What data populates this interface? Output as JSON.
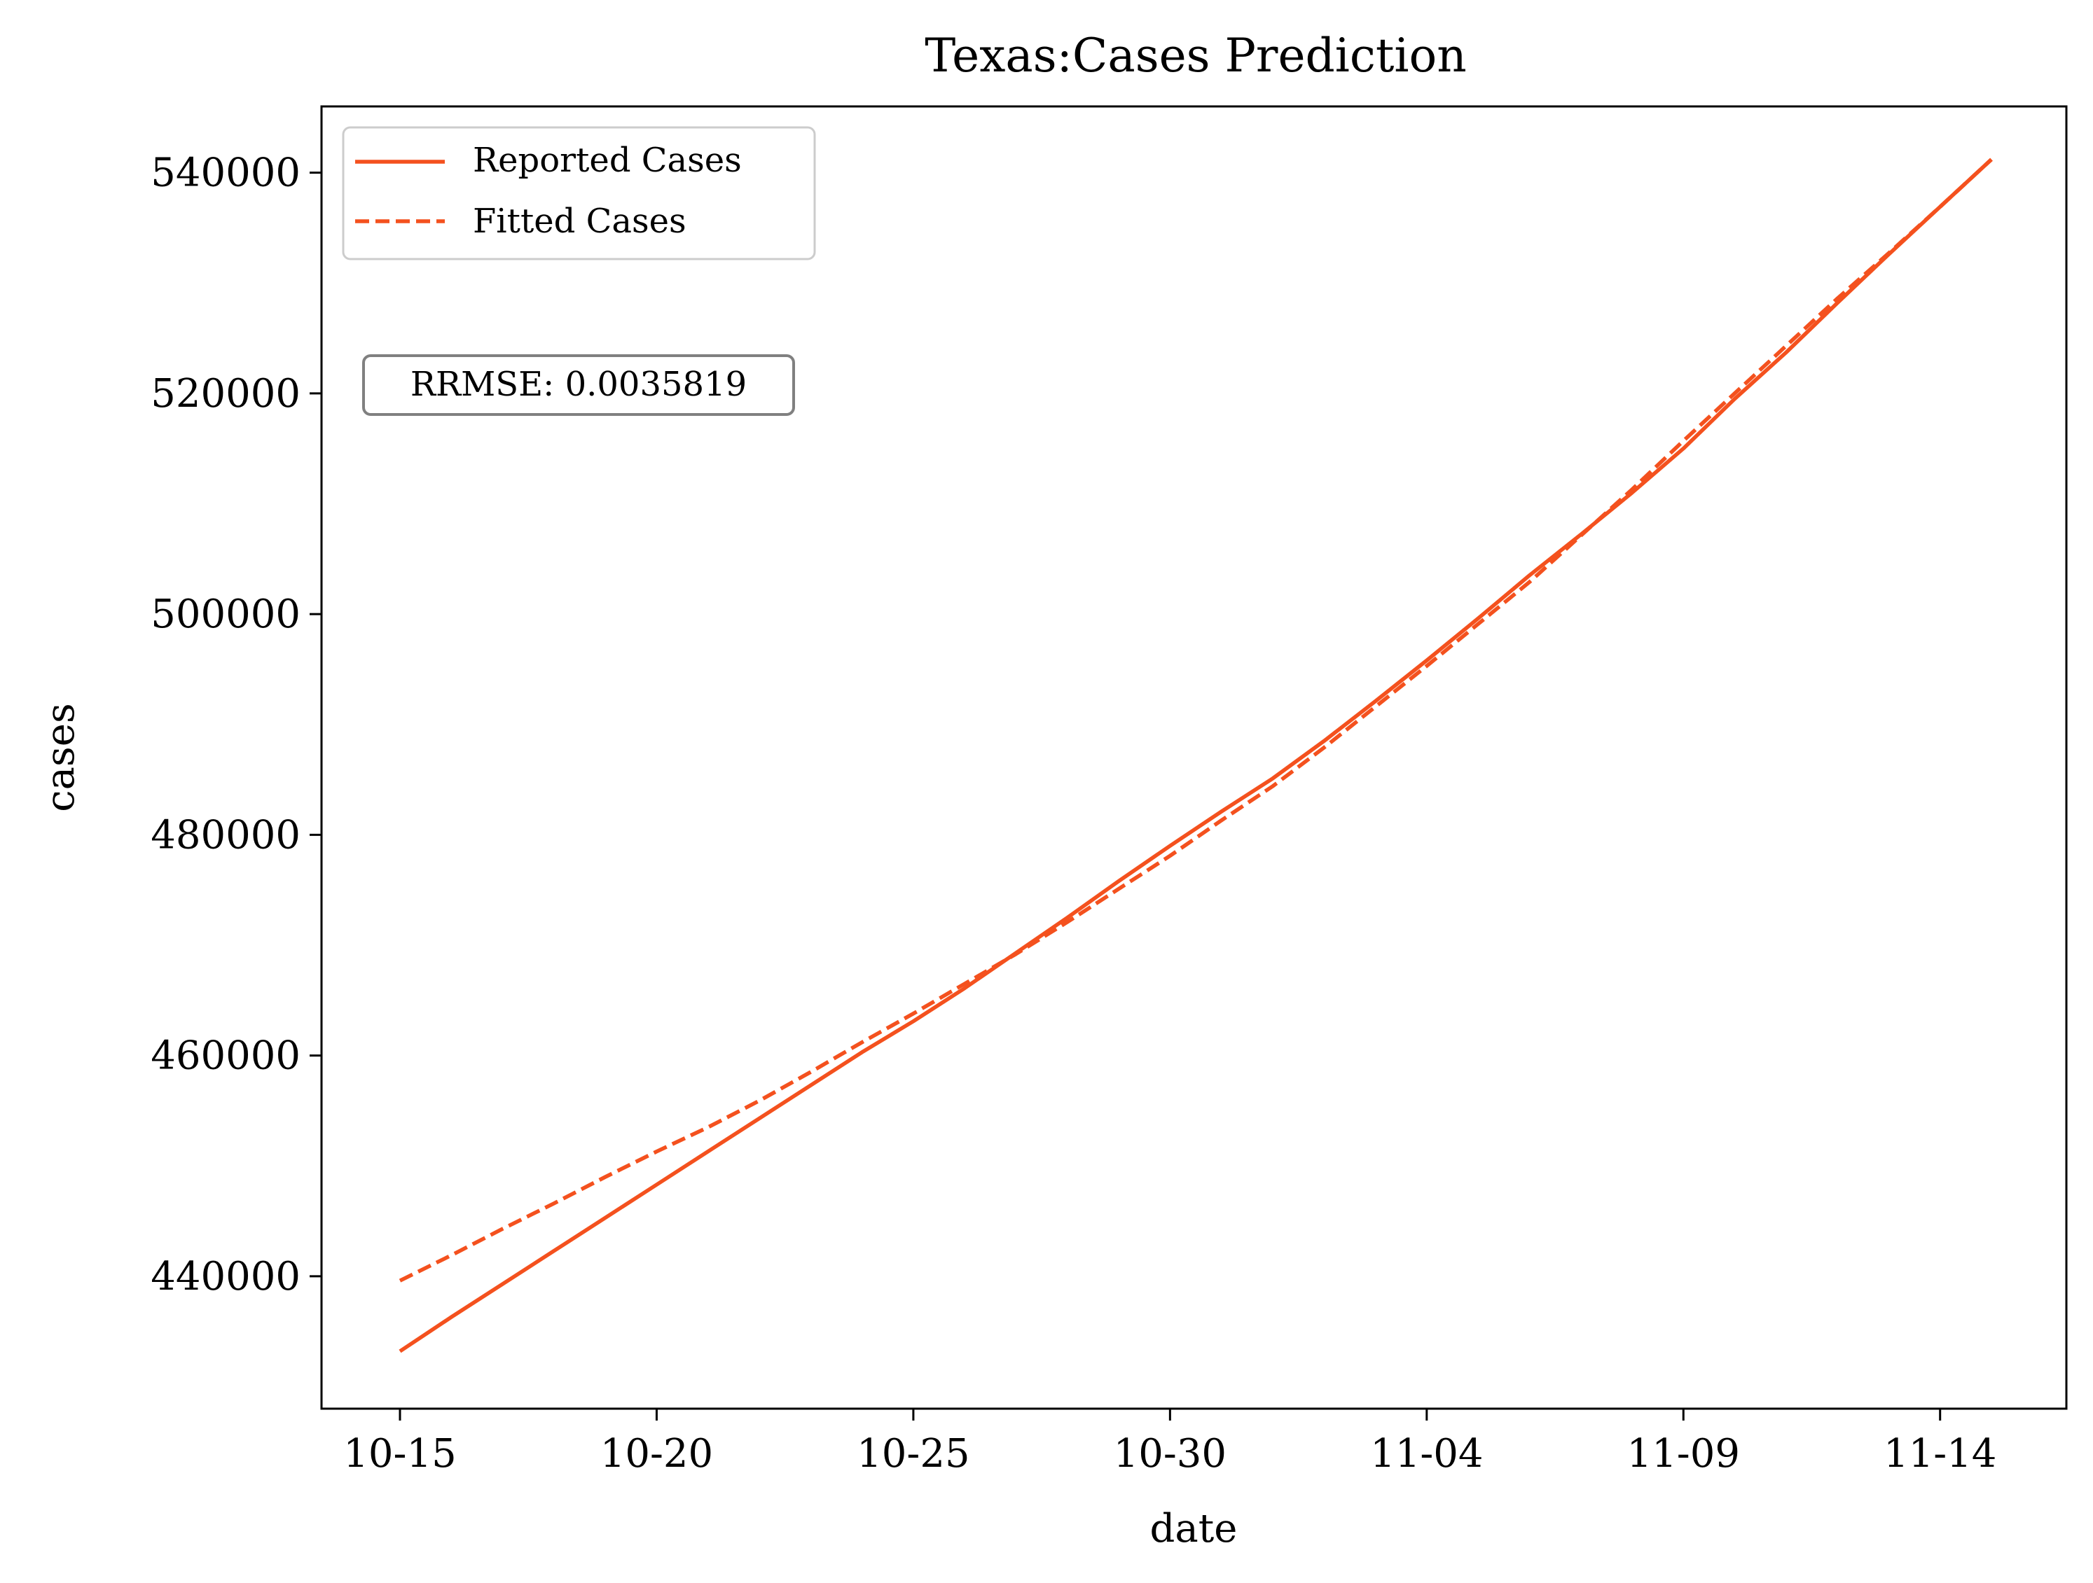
{
  "chart_data": {
    "type": "line",
    "title": "Texas:Cases Prediction",
    "xlabel": "date",
    "ylabel": "cases",
    "x_dates": [
      "10-15",
      "10-16",
      "10-17",
      "10-18",
      "10-19",
      "10-20",
      "10-21",
      "10-22",
      "10-23",
      "10-24",
      "10-25",
      "10-26",
      "10-27",
      "10-28",
      "10-29",
      "10-30",
      "10-31",
      "11-01",
      "11-02",
      "11-03",
      "11-04",
      "11-05",
      "11-06",
      "11-07",
      "11-08",
      "11-09",
      "11-10",
      "11-11",
      "11-12",
      "11-13",
      "11-14",
      "11-15"
    ],
    "x_ticks": [
      "10-15",
      "10-20",
      "10-25",
      "10-30",
      "11-04",
      "11-09",
      "11-14"
    ],
    "y_ticks": [
      440000,
      460000,
      480000,
      500000,
      520000,
      540000
    ],
    "ylim": [
      428000,
      546000
    ],
    "grid": false,
    "legend_position": "upper-left",
    "series": [
      {
        "name": "Reported Cases",
        "style": "solid",
        "color": "#f4511e",
        "values": [
          433200,
          436300,
          439300,
          442300,
          445300,
          448300,
          451300,
          454300,
          457300,
          460300,
          463100,
          466100,
          469300,
          472500,
          475800,
          479000,
          482100,
          485100,
          488500,
          492100,
          495800,
          499600,
          503500,
          507200,
          511000,
          515000,
          519500,
          523700,
          528200,
          532600,
          536900,
          541200
        ]
      },
      {
        "name": "Fitted Cases",
        "style": "dashed",
        "color": "#f4511e",
        "values": [
          439600,
          441900,
          444300,
          446600,
          449000,
          451300,
          453500,
          455900,
          458500,
          461200,
          463800,
          466500,
          469200,
          472100,
          475100,
          478100,
          481300,
          484400,
          487900,
          491600,
          495300,
          499100,
          502900,
          507100,
          511300,
          515700,
          520000,
          524300,
          528600,
          532700,
          536900,
          541200
        ]
      }
    ],
    "annotation": "RRMSE: 0.0035819"
  }
}
